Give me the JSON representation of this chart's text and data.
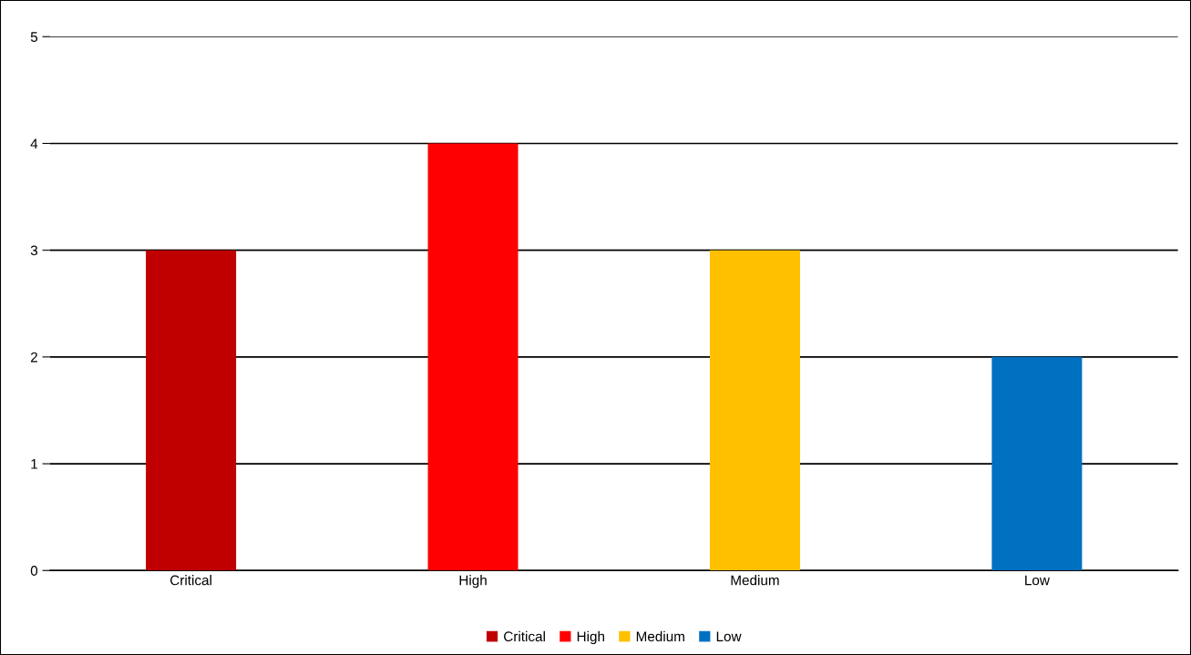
{
  "chart_data": {
    "type": "bar",
    "categories": [
      "Critical",
      "High",
      "Medium",
      "Low"
    ],
    "series": [
      {
        "name": "Critical",
        "color": "#c00000",
        "values": [
          3,
          null,
          null,
          null
        ]
      },
      {
        "name": "High",
        "color": "#ff0000",
        "values": [
          null,
          4,
          null,
          null
        ]
      },
      {
        "name": "Medium",
        "color": "#ffc000",
        "values": [
          null,
          null,
          3,
          null
        ]
      },
      {
        "name": "Low",
        "color": "#0070c0",
        "values": [
          null,
          null,
          null,
          2
        ]
      }
    ],
    "ylim": [
      0,
      5
    ],
    "yticks": [
      0,
      1,
      2,
      3,
      4,
      5
    ],
    "grid": "y",
    "legend": "bottom"
  }
}
